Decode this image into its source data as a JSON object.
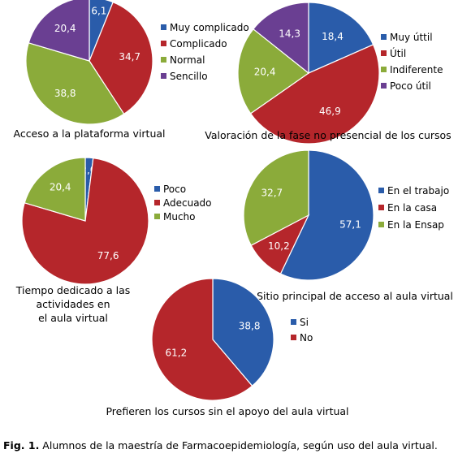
{
  "chart_data": [
    {
      "type": "pie",
      "title": "Acceso a la plataforma virtual",
      "categories": [
        "Muy complicado",
        "Complicado",
        "Normal",
        "Sencillo"
      ],
      "values": [
        6.1,
        34.7,
        38.8,
        20.4
      ],
      "labels": [
        "6,1",
        "34,7",
        "38,8",
        "20,4"
      ],
      "colors": [
        "#2a5caa",
        "#b5262b",
        "#8bab3a",
        "#6a3f92"
      ],
      "legend": "right"
    },
    {
      "type": "pie",
      "title": "Valoración de la fase no presencial de los cursos",
      "categories": [
        "Muy úttil",
        "Útil",
        "Indiferente",
        "Poco útil"
      ],
      "values": [
        18.4,
        46.9,
        20.4,
        14.3
      ],
      "labels": [
        "18,4",
        "46,9",
        "20,4",
        "14,3"
      ],
      "colors": [
        "#2a5caa",
        "#b5262b",
        "#8bab3a",
        "#6a3f92"
      ],
      "legend": "right"
    },
    {
      "type": "pie",
      "title": "Tiempo dedicado a las actividades en el aula virtual",
      "title_lines": [
        "Tiempo dedicado a las",
        "actividades en",
        "el aula virtual"
      ],
      "categories": [
        "Poco",
        "Adecuado",
        "Mucho"
      ],
      "values": [
        2.0,
        77.6,
        20.4
      ],
      "labels": [
        "2,0",
        "77,6",
        "20,4"
      ],
      "colors": [
        "#2a5caa",
        "#b5262b",
        "#8bab3a"
      ],
      "legend": "right"
    },
    {
      "type": "pie",
      "title": "Sitio principal de acceso al aula virtual",
      "categories": [
        "En el trabajo",
        "En la casa",
        "En la Ensap"
      ],
      "values": [
        57.1,
        10.2,
        32.7
      ],
      "labels": [
        "57,1",
        "10,2",
        "32,7"
      ],
      "colors": [
        "#2a5caa",
        "#b5262b",
        "#8bab3a"
      ],
      "legend": "right"
    },
    {
      "type": "pie",
      "title": "Prefieren los cursos sin el apoyo del aula virtual",
      "categories": [
        "Si",
        "No"
      ],
      "values": [
        38.8,
        61.2
      ],
      "labels": [
        "38,8",
        "61,2"
      ],
      "colors": [
        "#2a5caa",
        "#b5262b"
      ],
      "legend": "right"
    }
  ],
  "figure_caption": {
    "label": "Fig. 1.",
    "text": " Alumnos de la maestría de Farmacoepidemiología, según uso del aula virtual."
  }
}
